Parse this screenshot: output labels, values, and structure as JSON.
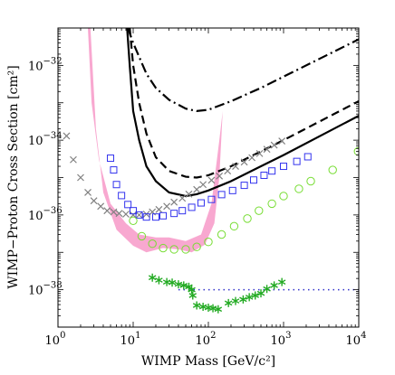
{
  "chart_data": {
    "type": "scatter",
    "title": "",
    "xlabel": "WIMP Mass [GeV/c²]",
    "ylabel": "WIMP−Proton Cross Section [cm²]",
    "xscale": "log",
    "yscale": "log",
    "xlim": [
      1,
      10000
    ],
    "ylim": [
      1e-39,
      1e-31
    ],
    "x_ticks": [
      {
        "value": 1,
        "base": "10",
        "exp": "0"
      },
      {
        "value": 10,
        "base": "10",
        "exp": "1"
      },
      {
        "value": 100,
        "base": "10",
        "exp": "2"
      },
      {
        "value": 1000,
        "base": "10",
        "exp": "3"
      },
      {
        "value": 10000,
        "base": "10",
        "exp": "4"
      }
    ],
    "y_ticks": [
      {
        "value": 1e-38,
        "base": "10",
        "exp": "−38"
      },
      {
        "value": 1e-36,
        "base": "10",
        "exp": "−36"
      },
      {
        "value": 1e-34,
        "base": "10",
        "exp": "−34"
      },
      {
        "value": 1e-32,
        "base": "10",
        "exp": "−32"
      }
    ],
    "grid": false,
    "legend": "none",
    "band": {
      "color": "#f8a8d0",
      "upper": [
        [
          2.5,
          1e-31
        ],
        [
          2.8,
          1e-33
        ],
        [
          3.5,
          3e-35
        ],
        [
          5,
          2e-36
        ],
        [
          8,
          6e-37
        ],
        [
          12,
          3e-37
        ],
        [
          20,
          2.5e-37
        ],
        [
          30,
          2.5e-37
        ],
        [
          50,
          2e-37
        ],
        [
          80,
          3e-37
        ],
        [
          110,
          2e-36
        ],
        [
          140,
          1e-34
        ],
        [
          155,
          6e-34
        ]
      ],
      "lower": [
        [
          155,
          6e-34
        ],
        [
          140,
          1e-35
        ],
        [
          120,
          6e-37
        ],
        [
          90,
          1.6e-37
        ],
        [
          60,
          1e-37
        ],
        [
          40,
          1.2e-37
        ],
        [
          25,
          1.3e-37
        ],
        [
          15,
          1e-37
        ],
        [
          10,
          1.5e-37
        ],
        [
          6,
          4e-37
        ],
        [
          4,
          4e-36
        ],
        [
          3.2,
          2e-34
        ],
        [
          2.7,
          1e-31
        ]
      ]
    },
    "series": [
      {
        "style": "solid",
        "color": "#000000",
        "width": 2.2,
        "points": [
          [
            8.3,
            1e-31
          ],
          [
            9,
            1e-32
          ],
          [
            10,
            6e-34
          ],
          [
            12,
            1e-34
          ],
          [
            15,
            2e-35
          ],
          [
            20,
            8e-36
          ],
          [
            30,
            4e-36
          ],
          [
            50,
            3.2e-36
          ],
          [
            70,
            3.6e-36
          ],
          [
            100,
            4.5e-36
          ],
          [
            200,
            8e-36
          ],
          [
            500,
            2e-35
          ],
          [
            1000,
            4e-35
          ],
          [
            10000,
            4.5e-34
          ]
        ]
      },
      {
        "style": "dashed",
        "color": "#000000",
        "width": 2.2,
        "points": [
          [
            9,
            1e-31
          ],
          [
            10,
            1e-32
          ],
          [
            12,
            1e-33
          ],
          [
            15,
            1.5e-34
          ],
          [
            20,
            3.5e-35
          ],
          [
            30,
            1.5e-35
          ],
          [
            50,
            1.05e-35
          ],
          [
            70,
            1e-35
          ],
          [
            100,
            1.15e-35
          ],
          [
            200,
            2e-35
          ],
          [
            500,
            5e-35
          ],
          [
            1000,
            1e-34
          ],
          [
            10000,
            1.1e-33
          ]
        ]
      },
      {
        "style": "dashdot",
        "color": "#000000",
        "width": 2.2,
        "points": [
          [
            8.5,
            1e-31
          ],
          [
            10,
            4e-32
          ],
          [
            15,
            6e-33
          ],
          [
            20,
            2.5e-33
          ],
          [
            30,
            1.2e-33
          ],
          [
            50,
            7e-34
          ],
          [
            70,
            6e-34
          ],
          [
            100,
            6.5e-34
          ],
          [
            200,
            1.1e-33
          ],
          [
            500,
            2.5e-33
          ],
          [
            1000,
            5e-33
          ],
          [
            10000,
            5e-32
          ]
        ]
      },
      {
        "style": "dotted",
        "color": "#3333cc",
        "width": 1.5,
        "points": [
          [
            40,
            1e-38
          ],
          [
            10000,
            1e-38
          ]
        ]
      }
    ],
    "markers": [
      {
        "shape": "cross",
        "color": "#808080",
        "points": [
          [
            1.3,
            1.3e-34
          ],
          [
            1.6,
            3e-35
          ],
          [
            2,
            1e-35
          ],
          [
            2.5,
            4e-36
          ],
          [
            3,
            2.4e-36
          ],
          [
            3.7,
            1.7e-36
          ],
          [
            4.5,
            1.3e-36
          ],
          [
            5.5,
            1.2e-36
          ],
          [
            6.5,
            1.1e-36
          ],
          [
            8,
            1.05e-36
          ],
          [
            10,
            1e-36
          ],
          [
            12,
            1e-36
          ],
          [
            15,
            1.05e-36
          ],
          [
            18,
            1.2e-36
          ],
          [
            22,
            1.4e-36
          ],
          [
            28,
            1.7e-36
          ],
          [
            35,
            2.2e-36
          ],
          [
            45,
            2.8e-36
          ],
          [
            55,
            3.6e-36
          ],
          [
            70,
            4.8e-36
          ],
          [
            85,
            6.5e-36
          ],
          [
            110,
            8.5e-36
          ],
          [
            140,
            1.1e-35
          ],
          [
            180,
            1.5e-35
          ],
          [
            230,
            2e-35
          ],
          [
            300,
            2.6e-35
          ],
          [
            380,
            3.4e-35
          ],
          [
            480,
            4.4e-35
          ],
          [
            600,
            5.7e-35
          ],
          [
            750,
            7.4e-35
          ],
          [
            950,
            9.5e-35
          ]
        ]
      },
      {
        "shape": "square",
        "color": "#3333ee",
        "points": [
          [
            5,
            3.3e-35
          ],
          [
            5.5,
            1.6e-35
          ],
          [
            6,
            6.5e-36
          ],
          [
            7,
            3.3e-36
          ],
          [
            8.5,
            1.9e-36
          ],
          [
            10,
            1.3e-36
          ],
          [
            12,
            1e-36
          ],
          [
            15,
            8.8e-37
          ],
          [
            20,
            8.8e-37
          ],
          [
            25,
            9.5e-37
          ],
          [
            35,
            1.1e-36
          ],
          [
            45,
            1.3e-36
          ],
          [
            60,
            1.6e-36
          ],
          [
            80,
            2.1e-36
          ],
          [
            110,
            2.6e-36
          ],
          [
            150,
            3.5e-36
          ],
          [
            210,
            4.5e-36
          ],
          [
            300,
            6.2e-36
          ],
          [
            400,
            8.6e-36
          ],
          [
            550,
            1.15e-35
          ],
          [
            700,
            1.5e-35
          ],
          [
            1000,
            2e-35
          ],
          [
            1500,
            2.7e-35
          ],
          [
            2100,
            3.6e-35
          ]
        ]
      },
      {
        "shape": "circle",
        "color": "#77dd33",
        "points": [
          [
            10,
            7e-37
          ],
          [
            13,
            2.7e-37
          ],
          [
            18,
            1.7e-37
          ],
          [
            25,
            1.3e-37
          ],
          [
            35,
            1.2e-37
          ],
          [
            50,
            1.2e-37
          ],
          [
            70,
            1.4e-37
          ],
          [
            100,
            1.9e-37
          ],
          [
            150,
            3e-37
          ],
          [
            220,
            5e-37
          ],
          [
            330,
            8e-37
          ],
          [
            470,
            1.3e-36
          ],
          [
            700,
            2e-36
          ],
          [
            1000,
            3.2e-36
          ],
          [
            1600,
            5e-36
          ],
          [
            2300,
            8e-36
          ],
          [
            4500,
            1.6e-35
          ],
          [
            9800,
            5e-35
          ]
        ]
      },
      {
        "shape": "asterisk",
        "color": "#22aa22",
        "points": [
          [
            18,
            2.1e-38
          ],
          [
            22,
            1.8e-38
          ],
          [
            28,
            1.6e-38
          ],
          [
            33,
            1.55e-38
          ],
          [
            40,
            1.4e-38
          ],
          [
            47,
            1.3e-38
          ],
          [
            55,
            1.2e-38
          ],
          [
            60,
            1e-38
          ],
          [
            62,
            7e-39
          ],
          [
            70,
            3.8e-39
          ],
          [
            85,
            3.5e-39
          ],
          [
            100,
            3.3e-39
          ],
          [
            115,
            3.2e-39
          ],
          [
            135,
            3e-39
          ],
          [
            185,
            4.4e-39
          ],
          [
            230,
            5e-39
          ],
          [
            290,
            5.5e-39
          ],
          [
            350,
            6.3e-39
          ],
          [
            420,
            7e-39
          ],
          [
            500,
            8e-39
          ],
          [
            600,
            1.05e-38
          ],
          [
            750,
            1.3e-38
          ],
          [
            950,
            1.6e-38
          ]
        ]
      }
    ]
  }
}
